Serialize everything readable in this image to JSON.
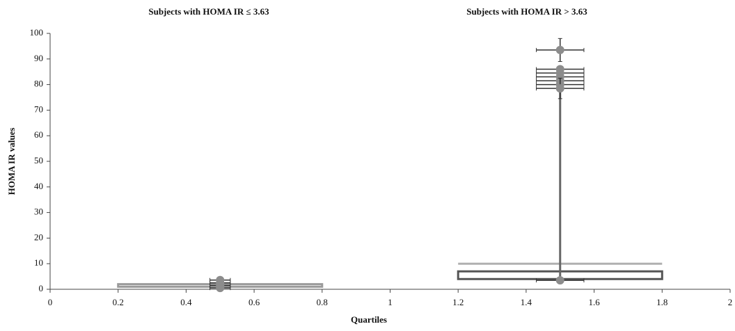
{
  "chart_data": {
    "type": "box",
    "titles": [
      "Subjects with HOMA IR ≤ 3.63",
      "Subjects with HOMA IR > 3.63"
    ],
    "y_label": "HOMA IR  values",
    "x_label": "Quartiles",
    "xlim": [
      0,
      2
    ],
    "xticks": [
      0,
      0.2,
      0.4,
      0.6,
      0.8,
      1,
      1.2,
      1.4,
      1.6,
      1.8,
      2
    ],
    "ylim": [
      0,
      100
    ],
    "yticks": [
      0,
      10,
      20,
      30,
      40,
      50,
      60,
      70,
      80,
      90,
      100
    ],
    "boxes": [
      {
        "x": [
          0.2,
          0.8
        ],
        "y": [
          1,
          2
        ],
        "color": "#9a9a9a"
      },
      {
        "x": [
          1.2,
          1.8
        ],
        "y": [
          4,
          7
        ],
        "color": "#555555"
      }
    ],
    "hlines": [
      {
        "x": [
          1.2,
          1.8
        ],
        "y": 10,
        "color": "#b0b0b0"
      }
    ],
    "vlines": [
      {
        "x": 1.5,
        "y": [
          4,
          79
        ],
        "color": "#666666"
      }
    ],
    "points": {
      "color": "#8c8c8c",
      "bar_color": "#333333",
      "x": [
        0.5,
        0.5,
        0.5,
        0.5,
        1.5,
        1.5,
        1.5,
        1.5,
        1.5,
        1.5,
        1.5,
        1.5
      ],
      "y": [
        3.6,
        2.5,
        1.5,
        0.5,
        93.5,
        86,
        84.5,
        83,
        81.5,
        80,
        78.5,
        3.5
      ],
      "xerr": [
        0.03,
        0.03,
        0.03,
        0.03,
        0.07,
        0.07,
        0.07,
        0.07,
        0.07,
        0.07,
        0.07,
        0.07
      ],
      "yerr": [
        0.5,
        0.5,
        0.5,
        0.5,
        4.5,
        1,
        1,
        1,
        1,
        1,
        4,
        0
      ]
    }
  }
}
